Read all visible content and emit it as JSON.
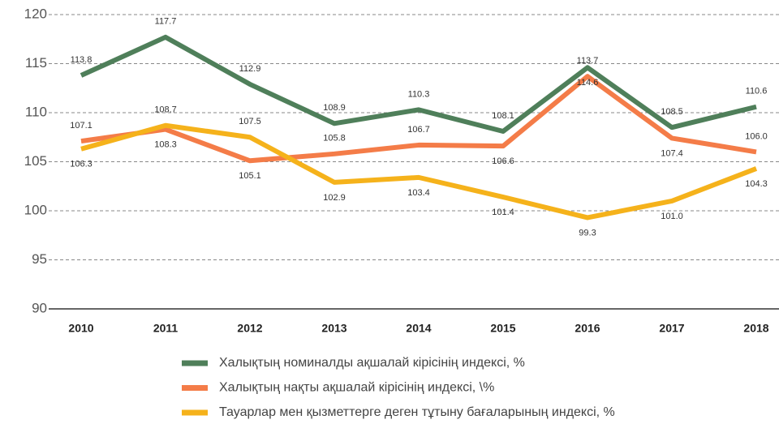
{
  "chart_data": {
    "type": "line",
    "categories": [
      "2010",
      "2011",
      "2012",
      "2013",
      "2014",
      "2015",
      "2016",
      "2017",
      "2018"
    ],
    "series": [
      {
        "name": "Халықтың номиналды ақшалай кірісінің индексі, %",
        "color": "#4f7f5a",
        "values": [
          113.8,
          117.7,
          112.9,
          108.9,
          110.3,
          108.1,
          114.6,
          108.5,
          110.6
        ]
      },
      {
        "name": "Халықтың нақты ақшалай кірісінің индексі, \\%",
        "color": "#f47c48",
        "values": [
          107.1,
          108.3,
          105.1,
          105.8,
          106.7,
          106.6,
          113.7,
          107.4,
          106.0
        ]
      },
      {
        "name": "Тауарлар мен қызметтерге деген тұтыну бағаларының индексі, %",
        "color": "#f5b21b",
        "values": [
          106.3,
          108.7,
          107.5,
          102.9,
          103.4,
          101.4,
          99.3,
          101.0,
          104.3
        ]
      }
    ],
    "value_labels": [
      [
        "113.8",
        "117.7",
        "112.9",
        "108.9",
        "110.3",
        "108.1",
        "114.6",
        "108.5",
        "110.6"
      ],
      [
        "107.1",
        "108.3",
        "105.1",
        "105.8",
        "106.7",
        "106.6",
        "113.7",
        "107.4",
        "106.0"
      ],
      [
        "106.3",
        "108.7",
        "107.5",
        "102.9",
        "103.4",
        "101.4",
        "99.3",
        "101.0",
        "104.3"
      ]
    ],
    "ylim": [
      90,
      120
    ],
    "yticks": [
      90,
      95,
      100,
      105,
      110,
      115,
      120
    ],
    "grid": true
  }
}
